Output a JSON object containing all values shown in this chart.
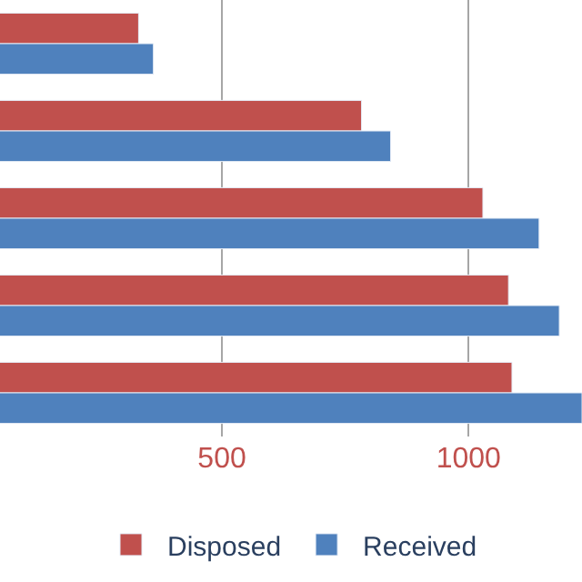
{
  "chart_data": {
    "type": "bar",
    "orientation": "horizontal",
    "categories": [
      null,
      null,
      null,
      null,
      null
    ],
    "series": [
      {
        "name": "Disposed",
        "color": "#c0504d",
        "values": [
          331,
          783,
          1029,
          1081,
          1088
        ]
      },
      {
        "name": "Received",
        "color": "#4f81bd",
        "values": [
          361,
          842,
          1143,
          1184,
          1230
        ]
      }
    ],
    "xlim": [
      50,
      1230
    ],
    "xticks": [
      500,
      1000
    ],
    "grid": "x",
    "legend": "bottom",
    "tick_labels": "x"
  }
}
